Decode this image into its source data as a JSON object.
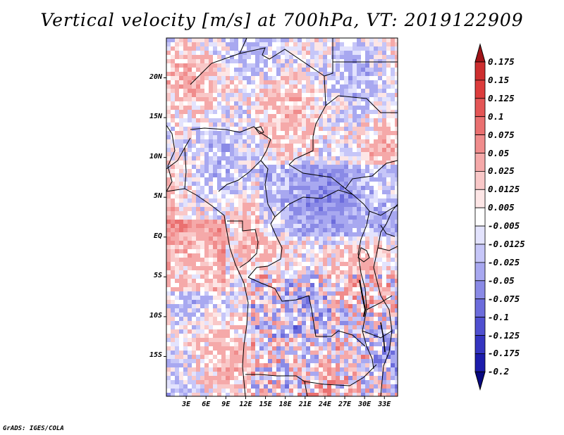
{
  "title": "Vertical velocity [m/s] at 700hPa, VT: 2019122909",
  "credit": "GrADS: IGES/COLA",
  "map": {
    "lat_labels": [
      "20N",
      "15N",
      "10N",
      "5N",
      "EQ",
      "5S",
      "10S",
      "15S"
    ],
    "lat_values": [
      20,
      15,
      10,
      5,
      0,
      -5,
      -10,
      -15
    ],
    "lon_labels": [
      "3E",
      "6E",
      "9E",
      "12E",
      "15E",
      "18E",
      "21E",
      "24E",
      "27E",
      "30E",
      "33E"
    ],
    "lon_values": [
      3,
      6,
      9,
      12,
      15,
      18,
      21,
      24,
      27,
      30,
      33
    ],
    "lon_range": [
      0,
      35
    ],
    "lat_range": [
      -20,
      25
    ]
  },
  "colorbar": {
    "labels": [
      "0.175",
      "0.15",
      "0.125",
      "0.1",
      "0.075",
      "0.05",
      "0.025",
      "0.0125",
      "0.005",
      "-0.005",
      "-0.0125",
      "-0.025",
      "-0.05",
      "-0.075",
      "-0.1",
      "-0.125",
      "-0.175",
      "-0.2"
    ],
    "colors": [
      "#b41b21",
      "#cd2e2f",
      "#dc3c3c",
      "#e45656",
      "#ea7070",
      "#f08c8c",
      "#f5a9a9",
      "#f9c8c8",
      "#fde6e6",
      "#ffffff",
      "#e3e3fd",
      "#c6c6f8",
      "#a8a8f0",
      "#8a8ae6",
      "#6c6cdc",
      "#4f4fd0",
      "#3434c0",
      "#1c1cab",
      "#0a0a90"
    ],
    "top_color": "#a01418",
    "bottom_color": "#080880"
  },
  "chart_data": {
    "type": "heatmap",
    "title": "Vertical velocity [m/s] at 700hPa, VT: 2019122909",
    "variable": "vertical velocity",
    "units": "m/s",
    "level": "700hPa",
    "valid_time": "2019122909",
    "x_ticks": [
      "3E",
      "6E",
      "9E",
      "12E",
      "15E",
      "18E",
      "21E",
      "24E",
      "27E",
      "30E",
      "33E"
    ],
    "y_ticks": [
      "20N",
      "15N",
      "10N",
      "5N",
      "EQ",
      "5S",
      "10S",
      "15S"
    ],
    "levels": [
      -0.2,
      -0.175,
      -0.125,
      -0.1,
      -0.075,
      -0.05,
      -0.025,
      -0.0125,
      -0.005,
      0.005,
      0.0125,
      0.025,
      0.05,
      0.075,
      0.1,
      0.125,
      0.15,
      0.175
    ]
  }
}
